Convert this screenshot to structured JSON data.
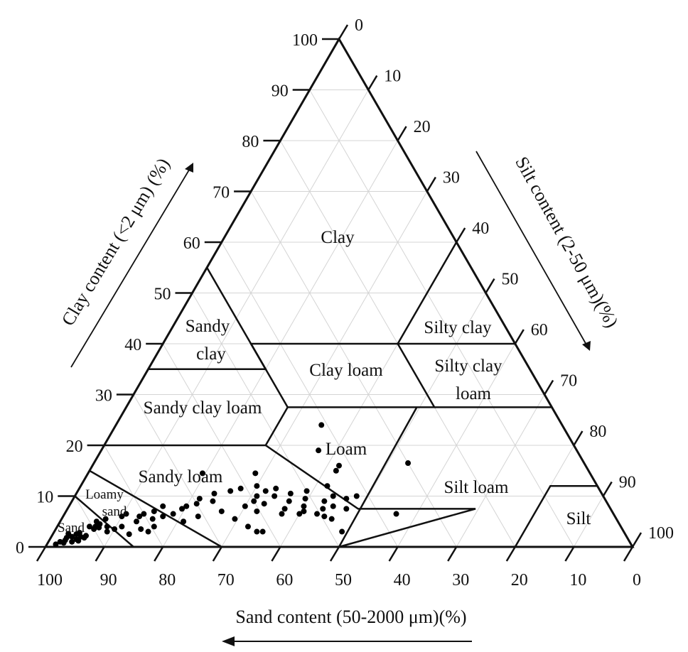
{
  "chart_data": {
    "type": "scatter",
    "subtype": "ternary (USDA soil texture triangle)",
    "axes": {
      "clay": {
        "label": "Clay content (<2 μm) (%)",
        "ticks": [
          "0",
          "10",
          "20",
          "30",
          "40",
          "50",
          "60",
          "70",
          "80",
          "90",
          "100"
        ],
        "range": [
          0,
          100
        ],
        "direction": "up"
      },
      "silt": {
        "label": "Silt content (2-50 μm)(%)",
        "ticks": [
          "0",
          "10",
          "20",
          "30",
          "40",
          "50",
          "60",
          "70",
          "80",
          "90",
          "100"
        ],
        "range": [
          0,
          100
        ],
        "direction": "down"
      },
      "sand": {
        "label": "Sand content (50-2000 μm)(%)",
        "ticks": [
          "100",
          "90",
          "80",
          "70",
          "60",
          "50",
          "40",
          "30",
          "20",
          "10",
          "0"
        ],
        "range": [
          0,
          100
        ],
        "direction": "left"
      }
    },
    "grid": true,
    "region_labels": {
      "clay": "Clay",
      "sandy_clay_1": "Sandy",
      "sandy_clay_2": "clay",
      "silty_clay": "Silty clay",
      "clay_loam": "Clay loam",
      "silty_clay_loam_1": "Silty clay",
      "silty_clay_loam_2": "loam",
      "sandy_clay_loam": "Sandy clay loam",
      "loam": "Loam",
      "sandy_loam": "Sandy loam",
      "loamy_sand_1": "Loamy",
      "loamy_sand_2": "sand",
      "sand": "Sand",
      "silt_loam": "Silt loam",
      "silt": "Silt"
    },
    "points": [
      {
        "sand": 98,
        "clay": 0.5
      },
      {
        "sand": 97,
        "clay": 1
      },
      {
        "sand": 96,
        "clay": 1.3
      },
      {
        "sand": 95.5,
        "clay": 1.8
      },
      {
        "sand": 95,
        "clay": 1
      },
      {
        "sand": 94.5,
        "clay": 2
      },
      {
        "sand": 94,
        "clay": 1.5
      },
      {
        "sand": 93.5,
        "clay": 2.5
      },
      {
        "sand": 93,
        "clay": 2
      },
      {
        "sand": 92.5,
        "clay": 1.8
      },
      {
        "sand": 92,
        "clay": 2.2
      },
      {
        "sand": 93.8,
        "clay": 1.2
      },
      {
        "sand": 94.8,
        "clay": 2.6
      },
      {
        "sand": 96.5,
        "clay": 0.8
      },
      {
        "sand": 92.8,
        "clay": 2.8
      },
      {
        "sand": 90.5,
        "clay": 4
      },
      {
        "sand": 90,
        "clay": 3.5
      },
      {
        "sand": 89.5,
        "clay": 4
      },
      {
        "sand": 88.5,
        "clay": 4.5
      },
      {
        "sand": 88,
        "clay": 3
      },
      {
        "sand": 87,
        "clay": 5.5
      },
      {
        "sand": 86.5,
        "clay": 3.5
      },
      {
        "sand": 87.5,
        "clay": 4
      },
      {
        "sand": 89,
        "clay": 3.8
      },
      {
        "sand": 88.8,
        "clay": 5
      },
      {
        "sand": 84,
        "clay": 6
      },
      {
        "sand": 83,
        "clay": 6.5
      },
      {
        "sand": 82,
        "clay": 5
      },
      {
        "sand": 81,
        "clay": 6
      },
      {
        "sand": 80,
        "clay": 6.5
      },
      {
        "sand": 79,
        "clay": 5.5
      },
      {
        "sand": 78,
        "clay": 7
      },
      {
        "sand": 77,
        "clay": 6
      },
      {
        "sand": 75,
        "clay": 6.5
      },
      {
        "sand": 74,
        "clay": 5
      },
      {
        "sand": 82,
        "clay": 3.5
      },
      {
        "sand": 81,
        "clay": 3
      },
      {
        "sand": 79.5,
        "clay": 4
      },
      {
        "sand": 72,
        "clay": 8
      },
      {
        "sand": 70,
        "clay": 8.5
      },
      {
        "sand": 69,
        "clay": 9.5
      },
      {
        "sand": 67,
        "clay": 9
      },
      {
        "sand": 66,
        "clay": 10.5
      },
      {
        "sand": 63,
        "clay": 11
      },
      {
        "sand": 61,
        "clay": 11.5
      },
      {
        "sand": 60,
        "clay": 9
      },
      {
        "sand": 59,
        "clay": 10
      },
      {
        "sand": 58,
        "clay": 12
      },
      {
        "sand": 57,
        "clay": 11
      },
      {
        "sand": 56,
        "clay": 10
      },
      {
        "sand": 55,
        "clay": 11.5
      },
      {
        "sand": 54,
        "clay": 9
      },
      {
        "sand": 53,
        "clay": 10.5
      },
      {
        "sand": 52,
        "clay": 8
      },
      {
        "sand": 51,
        "clay": 9.5
      },
      {
        "sand": 50,
        "clay": 11
      },
      {
        "sand": 49,
        "clay": 7.5
      },
      {
        "sand": 48,
        "clay": 9
      },
      {
        "sand": 47,
        "clay": 8
      },
      {
        "sand": 46,
        "clay": 10
      },
      {
        "sand": 45,
        "clay": 7.5
      },
      {
        "sand": 44,
        "clay": 9.5
      },
      {
        "sand": 62,
        "clay": 8
      },
      {
        "sand": 60.5,
        "clay": 7
      },
      {
        "sand": 58.5,
        "clay": 8.5
      },
      {
        "sand": 56.5,
        "clay": 6.5
      },
      {
        "sand": 55.5,
        "clay": 7.5
      },
      {
        "sand": 53.5,
        "clay": 6.5
      },
      {
        "sand": 52.5,
        "clay": 7
      },
      {
        "sand": 50.5,
        "clay": 6.5
      },
      {
        "sand": 49.5,
        "clay": 6
      },
      {
        "sand": 48.5,
        "clay": 5.5
      },
      {
        "sand": 66.5,
        "clay": 7
      },
      {
        "sand": 65,
        "clay": 5.5
      },
      {
        "sand": 63.5,
        "clay": 4
      },
      {
        "sand": 62.5,
        "clay": 3
      },
      {
        "sand": 61.5,
        "clay": 3
      },
      {
        "sand": 71,
        "clay": 6
      },
      {
        "sand": 73,
        "clay": 7.5
      },
      {
        "sand": 76,
        "clay": 8
      },
      {
        "sand": 85,
        "clay": 4
      },
      {
        "sand": 84.5,
        "clay": 2.5
      },
      {
        "sand": 66,
        "clay": 14.5
      },
      {
        "sand": 57,
        "clay": 14.5
      },
      {
        "sand": 43,
        "clay": 15
      },
      {
        "sand": 42,
        "clay": 16
      },
      {
        "sand": 44,
        "clay": 19
      },
      {
        "sand": 41,
        "clay": 24
      },
      {
        "sand": 30,
        "clay": 16.5
      },
      {
        "sand": 46,
        "clay": 12
      },
      {
        "sand": 42,
        "clay": 10
      },
      {
        "sand": 37,
        "clay": 6.5
      },
      {
        "sand": 48,
        "clay": 3
      }
    ]
  }
}
